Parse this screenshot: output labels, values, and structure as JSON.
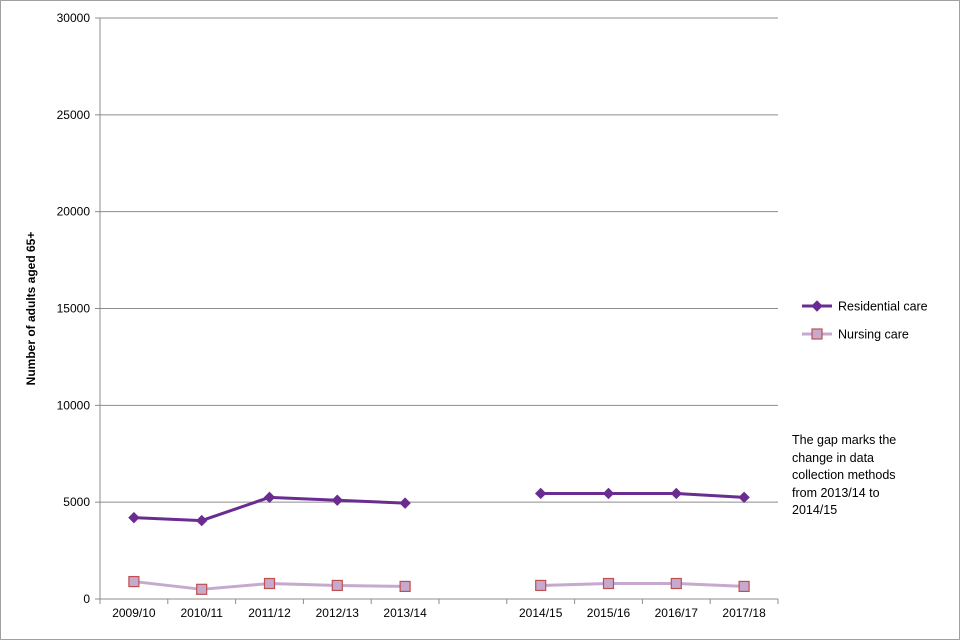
{
  "chart_data": {
    "type": "line",
    "categories": [
      "2009/10",
      "2010/11",
      "2011/12",
      "2012/13",
      "2013/14",
      "",
      "2014/15",
      "2015/16",
      "2016/17",
      "2017/18"
    ],
    "series": [
      {
        "name": "Residential care",
        "values": [
          4200,
          4050,
          5250,
          5100,
          4950,
          null,
          5450,
          5450,
          5450,
          5250
        ],
        "color": "#6a2c91",
        "marker": "diamond"
      },
      {
        "name": "Nursing care",
        "values": [
          900,
          500,
          800,
          700,
          650,
          null,
          700,
          800,
          800,
          650
        ],
        "color": "#c6a9cf",
        "marker": "square",
        "marker_border": "#c0504d"
      }
    ],
    "title": "",
    "xlabel": "",
    "ylabel": "Number of adults aged 65+",
    "ylim": [
      0,
      30000
    ],
    "yticks": [
      0,
      5000,
      10000,
      15000,
      20000,
      25000,
      30000
    ],
    "grid": true,
    "legend_position": "right",
    "annotation_lines": [
      "The gap marks the",
      "change in data",
      "collection methods",
      "from 2013/14 to",
      "2014/15"
    ]
  }
}
